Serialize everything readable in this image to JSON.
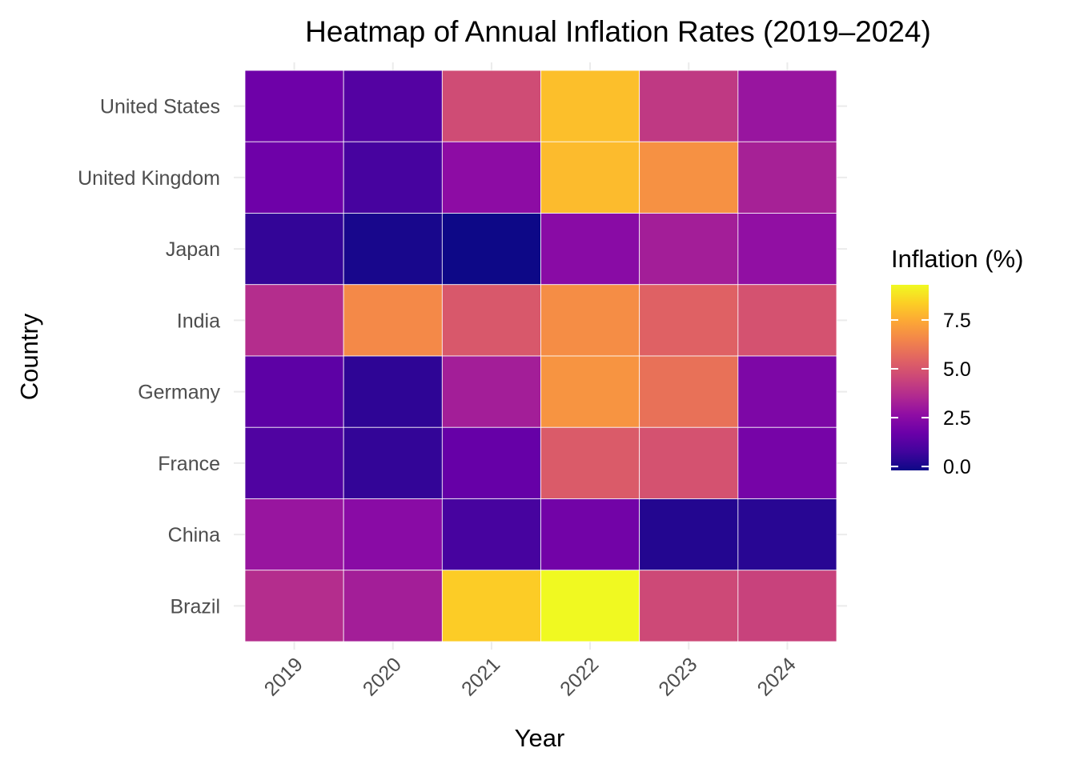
{
  "chart_data": {
    "type": "heatmap",
    "title": "Heatmap of Annual Inflation Rates (2019–2024)",
    "xlabel": "Year",
    "ylabel": "Country",
    "x": [
      "2019",
      "2020",
      "2021",
      "2022",
      "2023",
      "2024"
    ],
    "y": [
      "United States",
      "United Kingdom",
      "Japan",
      "India",
      "Germany",
      "France",
      "China",
      "Brazil"
    ],
    "values": [
      [
        1.8,
        1.2,
        4.7,
        8.0,
        4.1,
        2.9
      ],
      [
        1.8,
        0.9,
        2.6,
        7.9,
        6.8,
        3.3
      ],
      [
        0.5,
        0.0,
        -0.2,
        2.5,
        3.2,
        2.7
      ],
      [
        3.7,
        6.6,
        5.1,
        6.7,
        5.4,
        4.9
      ],
      [
        1.4,
        0.4,
        3.2,
        6.9,
        5.9,
        2.2
      ],
      [
        1.1,
        0.5,
        1.6,
        5.2,
        4.9,
        2.0
      ],
      [
        2.9,
        2.5,
        0.9,
        1.9,
        0.2,
        0.3
      ],
      [
        3.7,
        3.2,
        8.3,
        9.3,
        4.6,
        4.4
      ]
    ],
    "legend": {
      "title": "Inflation (%)",
      "position": "right",
      "ticks": [
        0.0,
        2.5,
        5.0,
        7.5
      ],
      "tick_labels": [
        "0.0",
        "2.5",
        "5.0",
        "7.5"
      ],
      "range": [
        -0.2,
        9.3
      ]
    },
    "colormap": "plasma",
    "grid": true
  }
}
